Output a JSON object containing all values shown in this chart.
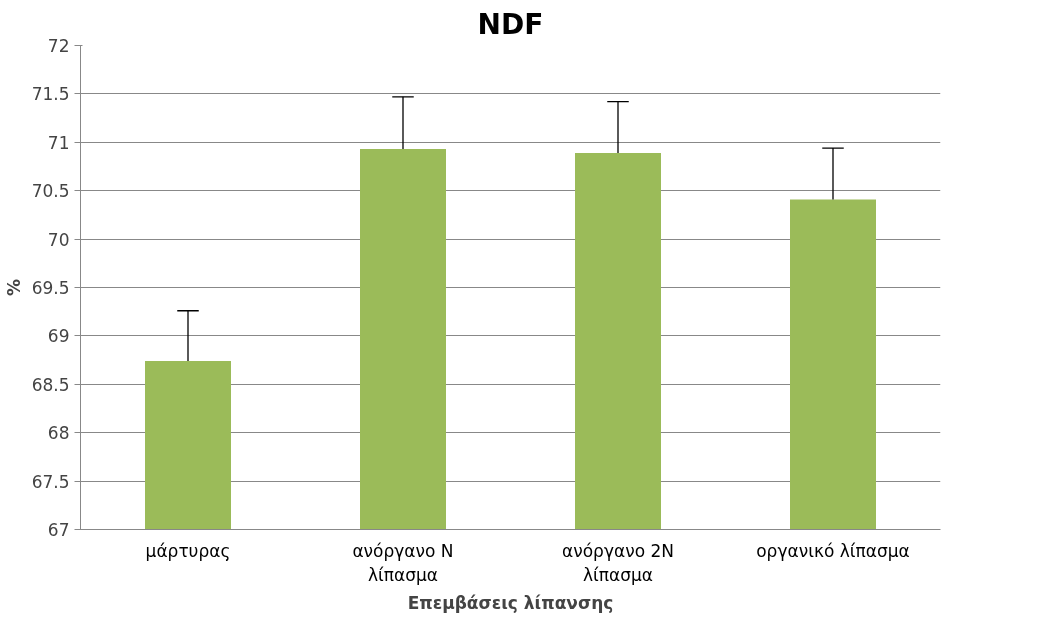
{
  "chart_data": {
    "type": "bar",
    "title": "NDF",
    "xlabel": "Επεμβάσεις λίπανσης",
    "ylabel": "%",
    "categories": [
      "μάρτυρας",
      "ανόργανο N λίπασμα",
      "ανόργανο 2N λίπασμα",
      "οργανικό λίπασμα"
    ],
    "values": [
      68.74,
      70.93,
      70.89,
      70.41
    ],
    "color": "#9bbb59",
    "errors": [
      [
        68.74,
        69.26
      ],
      [
        70.93,
        71.47
      ],
      [
        70.89,
        71.42
      ],
      [
        70.41,
        70.94
      ]
    ],
    "ylim": [
      67,
      72
    ],
    "yticks": [
      67,
      67.5,
      68,
      68.5,
      69,
      69.5,
      70,
      70.5,
      71,
      71.5,
      72
    ],
    "grid": "y"
  }
}
